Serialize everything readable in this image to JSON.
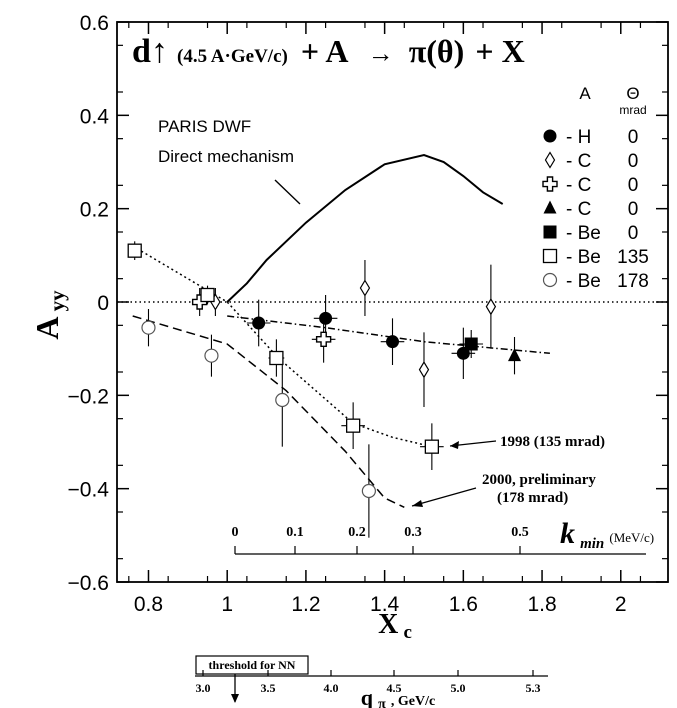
{
  "chart_data": {
    "type": "scatter",
    "title_parts": {
      "d": "d↑",
      "beam": "(4.5 A·GeV/c)",
      "plus_a": "+ A",
      "arrow": "→",
      "pi": "π(θ)",
      "plus_x": "+ X"
    },
    "xlabel": "X",
    "xlabel_sub": "c",
    "ylabel": "A",
    "ylabel_sub": "yy",
    "xlim": [
      0.72,
      2.12
    ],
    "ylim": [
      -0.6,
      0.6
    ],
    "x_ticks": [
      "0.8",
      "1",
      "1.2",
      "1.4",
      "1.6",
      "1.8",
      "2"
    ],
    "x_tick_values": [
      0.8,
      1.0,
      1.2,
      1.4,
      1.6,
      1.8,
      2.0
    ],
    "y_ticks": [
      "0.6",
      "0.4",
      "0.2",
      "0",
      "−0.2",
      "−0.4",
      "−0.6"
    ],
    "y_tick_values": [
      0.6,
      0.4,
      0.2,
      0.0,
      -0.2,
      -0.4,
      -0.6
    ],
    "legend": {
      "col_a": "A",
      "col_theta": "Θ",
      "col_theta_unit": "mrad",
      "entries": [
        {
          "marker": "filled-circle",
          "label": "- H",
          "theta": "0"
        },
        {
          "marker": "open-diamond",
          "label": "- C",
          "theta": "0"
        },
        {
          "marker": "open-cross",
          "label": "- C",
          "theta": "0"
        },
        {
          "marker": "filled-triangle",
          "label": "- C",
          "theta": "0"
        },
        {
          "marker": "filled-square",
          "label": "- Be",
          "theta": "0"
        },
        {
          "marker": "open-square",
          "label": "- Be",
          "theta": "135"
        },
        {
          "marker": "open-circle",
          "label": "- Be",
          "theta": "178"
        }
      ]
    },
    "series": [
      {
        "marker": "filled-circle",
        "points": [
          {
            "x": 1.08,
            "y": -0.045,
            "yerr": 0.05,
            "xerr": 0.03
          },
          {
            "x": 1.25,
            "y": -0.035,
            "yerr": 0.05,
            "xerr": 0.03
          },
          {
            "x": 1.42,
            "y": -0.085,
            "yerr": 0.05,
            "xerr": 0.03
          },
          {
            "x": 1.6,
            "y": -0.11,
            "yerr": 0.055,
            "xerr": 0.03
          }
        ]
      },
      {
        "marker": "open-diamond",
        "points": [
          {
            "x": 0.97,
            "y": 0.0,
            "yerr": 0.03,
            "xerr": 0.0
          },
          {
            "x": 1.35,
            "y": 0.03,
            "yerr": 0.06,
            "xerr": 0.0
          },
          {
            "x": 1.5,
            "y": -0.145,
            "yerr": 0.08,
            "xerr": 0.0
          },
          {
            "x": 1.67,
            "y": -0.01,
            "yerr": 0.09,
            "xerr": 0.0
          }
        ]
      },
      {
        "marker": "open-cross",
        "points": [
          {
            "x": 0.93,
            "y": 0.0,
            "yerr": 0.03,
            "xerr": 0.0
          },
          {
            "x": 1.245,
            "y": -0.08,
            "yerr": 0.05,
            "xerr": 0.03
          }
        ]
      },
      {
        "marker": "filled-triangle",
        "points": [
          {
            "x": 1.73,
            "y": -0.115,
            "yerr": 0.04,
            "xerr": 0.0
          }
        ]
      },
      {
        "marker": "filled-square",
        "points": [
          {
            "x": 1.62,
            "y": -0.09,
            "yerr": 0.03,
            "xerr": 0.03
          }
        ]
      },
      {
        "marker": "open-square",
        "points": [
          {
            "x": 0.765,
            "y": 0.11,
            "yerr": 0.02,
            "xerr": 0.0
          },
          {
            "x": 0.95,
            "y": 0.015,
            "yerr": 0.02,
            "xerr": 0.02
          },
          {
            "x": 1.125,
            "y": -0.12,
            "yerr": 0.04,
            "xerr": 0.02
          },
          {
            "x": 1.32,
            "y": -0.265,
            "yerr": 0.05,
            "xerr": 0.03
          },
          {
            "x": 1.52,
            "y": -0.31,
            "yerr": 0.05,
            "xerr": 0.03
          }
        ]
      },
      {
        "marker": "open-circle",
        "points": [
          {
            "x": 0.8,
            "y": -0.055,
            "yerr": 0.04,
            "xerr": 0.0
          },
          {
            "x": 0.96,
            "y": -0.115,
            "yerr": 0.045,
            "xerr": 0.0
          },
          {
            "x": 1.14,
            "y": -0.21,
            "yerr": 0.1,
            "xerr": 0.0
          },
          {
            "x": 1.36,
            "y": -0.405,
            "yerr": 0.1,
            "xerr": 0.0
          }
        ]
      }
    ],
    "curves": [
      {
        "style": "solid",
        "points": [
          [
            1.0,
            0.0
          ],
          [
            1.05,
            0.04
          ],
          [
            1.1,
            0.09
          ],
          [
            1.2,
            0.17
          ],
          [
            1.3,
            0.24
          ],
          [
            1.4,
            0.295
          ],
          [
            1.5,
            0.315
          ],
          [
            1.55,
            0.3
          ],
          [
            1.6,
            0.27
          ],
          [
            1.65,
            0.235
          ],
          [
            1.7,
            0.21
          ]
        ]
      },
      {
        "style": "dotted",
        "points": [
          [
            0.76,
            0.12
          ],
          [
            1.0,
            0.0
          ],
          [
            1.13,
            -0.12
          ],
          [
            1.32,
            -0.26
          ],
          [
            1.42,
            -0.29
          ],
          [
            1.52,
            -0.31
          ]
        ]
      },
      {
        "style": "dashed",
        "points": [
          [
            0.76,
            -0.03
          ],
          [
            1.0,
            -0.09
          ],
          [
            1.15,
            -0.19
          ],
          [
            1.3,
            -0.32
          ],
          [
            1.4,
            -0.42
          ],
          [
            1.45,
            -0.44
          ]
        ]
      },
      {
        "style": "dash-dot",
        "points": [
          [
            1.0,
            -0.03
          ],
          [
            1.25,
            -0.055
          ],
          [
            1.5,
            -0.085
          ],
          [
            1.82,
            -0.11
          ]
        ]
      },
      {
        "style": "fine-dotted",
        "points": [
          [
            0.72,
            0.0
          ],
          [
            2.12,
            0.0
          ]
        ]
      }
    ],
    "annotations": {
      "paris1": "PARIS DWF",
      "paris2": "Direct mechanism",
      "ann1998": "1998 (135 mrad)",
      "ann2000a": "2000, preliminary",
      "ann2000b": "(178 mrad)"
    },
    "kmin_axis": {
      "label": "k",
      "label_sub": "min",
      "unit": "(MeV/c)",
      "ticks": [
        "0",
        "0.1",
        "0.2",
        "0.3",
        "0.5"
      ]
    },
    "qpi_axis": {
      "label": "q",
      "label_sub": "π",
      "unit": ", GeV/c",
      "ticks": [
        "3.0",
        "3.5",
        "4.0",
        "4.5",
        "5.0",
        "5.3"
      ],
      "threshold": "threshold for NN"
    }
  }
}
